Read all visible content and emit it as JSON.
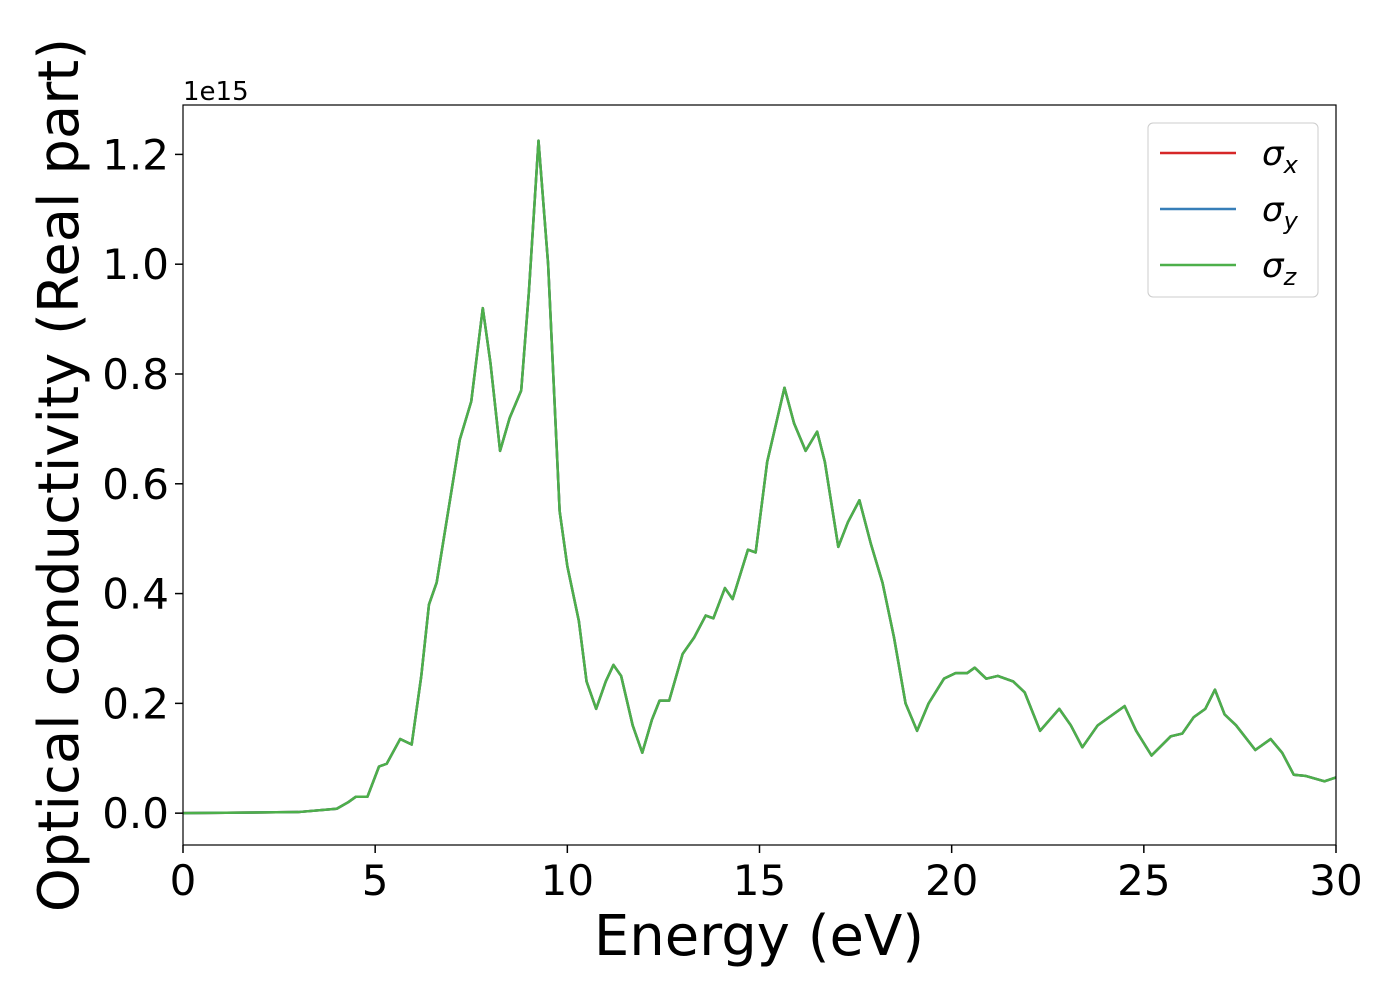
{
  "chart_data": {
    "type": "line",
    "xlabel": "Energy (eV)",
    "ylabel": "Optical conductivity (Real part)",
    "offset_label": "1e15",
    "x": [
      0,
      3,
      4,
      4.3,
      4.5,
      4.8,
      5.1,
      5.3,
      5.65,
      5.95,
      6.2,
      6.4,
      6.6,
      6.9,
      7.2,
      7.5,
      7.8,
      8.0,
      8.25,
      8.5,
      8.8,
      9.0,
      9.25,
      9.5,
      9.8,
      10.0,
      10.3,
      10.5,
      10.75,
      11.0,
      11.2,
      11.4,
      11.7,
      11.95,
      12.2,
      12.4,
      12.65,
      13.0,
      13.3,
      13.6,
      13.8,
      14.1,
      14.3,
      14.7,
      14.9,
      15.2,
      15.4,
      15.65,
      15.9,
      16.2,
      16.5,
      16.7,
      17.05,
      17.3,
      17.6,
      17.9,
      18.2,
      18.5,
      18.8,
      19.1,
      19.4,
      19.8,
      20.1,
      20.4,
      20.6,
      20.9,
      21.2,
      21.6,
      21.9,
      22.3,
      22.8,
      23.1,
      23.4,
      23.8,
      24.1,
      24.5,
      24.8,
      25.2,
      25.7,
      26.0,
      26.3,
      26.6,
      26.85,
      27.1,
      27.4,
      27.9,
      28.3,
      28.6,
      28.9,
      29.2,
      29.7,
      30
    ],
    "series": [
      {
        "name": "σx",
        "color": "#d62728",
        "values": [
          0,
          0.002,
          0.008,
          0.02,
          0.03,
          0.03,
          0.085,
          0.09,
          0.135,
          0.125,
          0.25,
          0.38,
          0.42,
          0.55,
          0.68,
          0.75,
          0.92,
          0.82,
          0.66,
          0.72,
          0.77,
          0.95,
          1.225,
          1.0,
          0.55,
          0.45,
          0.35,
          0.24,
          0.19,
          0.24,
          0.27,
          0.25,
          0.16,
          0.11,
          0.17,
          0.205,
          0.205,
          0.29,
          0.32,
          0.36,
          0.355,
          0.41,
          0.39,
          0.48,
          0.475,
          0.64,
          0.7,
          0.775,
          0.71,
          0.66,
          0.695,
          0.64,
          0.485,
          0.53,
          0.57,
          0.49,
          0.42,
          0.32,
          0.2,
          0.15,
          0.2,
          0.245,
          0.255,
          0.255,
          0.265,
          0.245,
          0.25,
          0.24,
          0.22,
          0.15,
          0.19,
          0.16,
          0.12,
          0.16,
          0.175,
          0.195,
          0.15,
          0.105,
          0.14,
          0.145,
          0.175,
          0.19,
          0.225,
          0.18,
          0.16,
          0.115,
          0.135,
          0.11,
          0.07,
          0.068,
          0.058,
          0.065
        ]
      },
      {
        "name": "σy",
        "color": "#377eb8",
        "values": [
          0,
          0.002,
          0.008,
          0.02,
          0.03,
          0.03,
          0.085,
          0.09,
          0.135,
          0.125,
          0.25,
          0.38,
          0.42,
          0.55,
          0.68,
          0.75,
          0.92,
          0.82,
          0.66,
          0.72,
          0.77,
          0.95,
          1.225,
          1.0,
          0.55,
          0.45,
          0.35,
          0.24,
          0.19,
          0.24,
          0.27,
          0.25,
          0.16,
          0.11,
          0.17,
          0.205,
          0.205,
          0.29,
          0.32,
          0.36,
          0.355,
          0.41,
          0.39,
          0.48,
          0.475,
          0.64,
          0.7,
          0.775,
          0.71,
          0.66,
          0.695,
          0.64,
          0.485,
          0.53,
          0.57,
          0.49,
          0.42,
          0.32,
          0.2,
          0.15,
          0.2,
          0.245,
          0.255,
          0.255,
          0.265,
          0.245,
          0.25,
          0.24,
          0.22,
          0.15,
          0.19,
          0.16,
          0.12,
          0.16,
          0.175,
          0.195,
          0.15,
          0.105,
          0.14,
          0.145,
          0.175,
          0.19,
          0.225,
          0.18,
          0.16,
          0.115,
          0.135,
          0.11,
          0.07,
          0.068,
          0.058,
          0.065
        ]
      },
      {
        "name": "σz",
        "color": "#4daf4a",
        "values": [
          0,
          0.002,
          0.008,
          0.02,
          0.03,
          0.03,
          0.085,
          0.09,
          0.135,
          0.125,
          0.25,
          0.38,
          0.42,
          0.55,
          0.68,
          0.75,
          0.92,
          0.82,
          0.66,
          0.72,
          0.77,
          0.95,
          1.225,
          1.0,
          0.55,
          0.45,
          0.35,
          0.24,
          0.19,
          0.24,
          0.27,
          0.25,
          0.16,
          0.11,
          0.17,
          0.205,
          0.205,
          0.29,
          0.32,
          0.36,
          0.355,
          0.41,
          0.39,
          0.48,
          0.475,
          0.64,
          0.7,
          0.775,
          0.71,
          0.66,
          0.695,
          0.64,
          0.485,
          0.53,
          0.57,
          0.49,
          0.42,
          0.32,
          0.2,
          0.15,
          0.2,
          0.245,
          0.255,
          0.255,
          0.265,
          0.245,
          0.25,
          0.24,
          0.22,
          0.15,
          0.19,
          0.16,
          0.12,
          0.16,
          0.175,
          0.195,
          0.15,
          0.105,
          0.14,
          0.145,
          0.175,
          0.19,
          0.225,
          0.18,
          0.16,
          0.115,
          0.135,
          0.11,
          0.07,
          0.068,
          0.058,
          0.065
        ]
      }
    ],
    "xlim": [
      0,
      30
    ],
    "xticks": [
      0,
      5,
      10,
      15,
      20,
      25,
      30
    ],
    "ylim": [
      -0.058,
      1.29
    ],
    "yticks": [
      {
        "value": 0,
        "label": "0.0"
      },
      {
        "value": 0.2,
        "label": "0.2"
      },
      {
        "value": 0.4,
        "label": "0.4"
      },
      {
        "value": 0.6,
        "label": "0.6"
      },
      {
        "value": 0.8,
        "label": "0.8"
      },
      {
        "value": 1.0,
        "label": "1.0"
      },
      {
        "value": 1.2,
        "label": "1.2"
      }
    ],
    "legend": "upper right",
    "grid": false
  }
}
